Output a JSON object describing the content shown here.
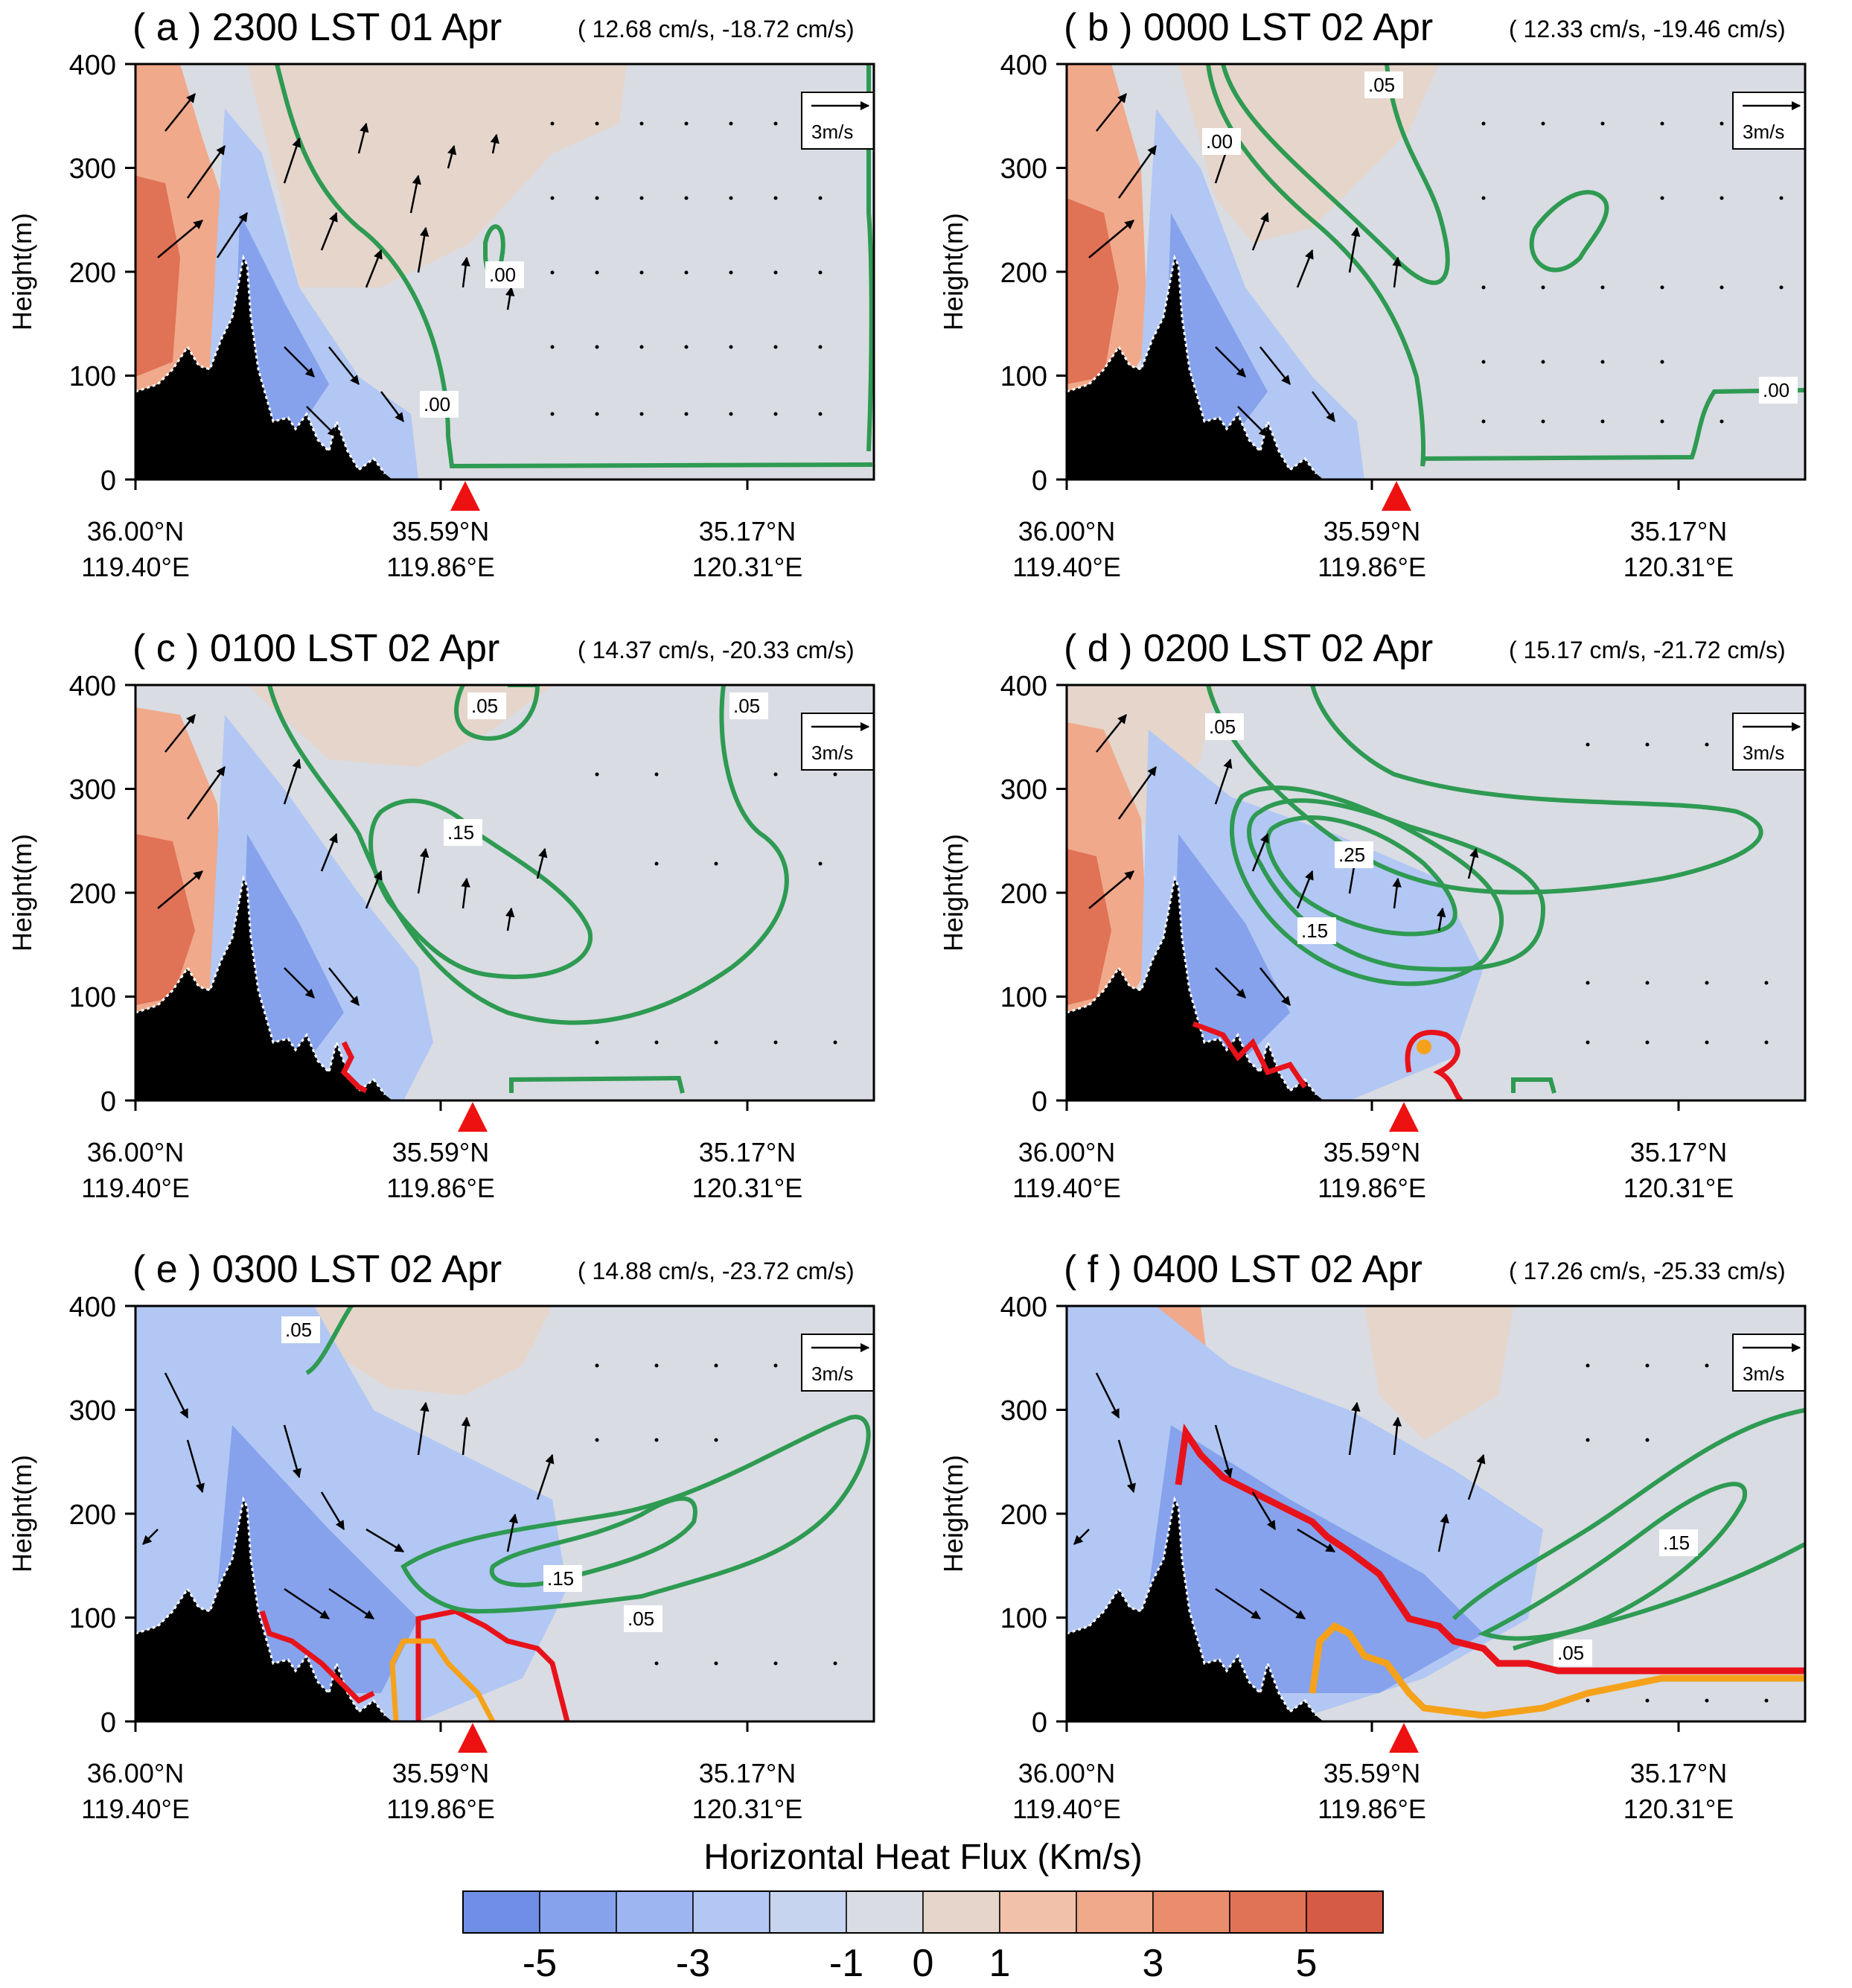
{
  "chart_data": {
    "type": "contour-vector-section",
    "colorbar": {
      "title": "Horizontal Heat Flux (Km/s)",
      "tick_labels": [
        "-5",
        "-3",
        "-1",
        "0",
        "1",
        "3",
        "5"
      ],
      "levels": [
        -6,
        -5,
        -4,
        -3,
        -2,
        -1,
        0,
        1,
        2,
        3,
        4,
        5,
        6
      ],
      "colors": [
        "#6f8ee6",
        "#86a2ec",
        "#9db5f0",
        "#b2c7f3",
        "#c6d4ef",
        "#d9dce3",
        "#e5d5cb",
        "#f2c1aa",
        "#f0a98b",
        "#ea8d6d",
        "#e07256",
        "#d65b44"
      ]
    },
    "ylabel": "Height(m)",
    "ylim": [
      0,
      400
    ],
    "yticks": [
      "0",
      "100",
      "200",
      "300",
      "400"
    ],
    "xticks": [
      {
        "lat": "36.00°N",
        "lon": "119.40°E"
      },
      {
        "lat": "35.59°N",
        "lon": "119.86°E"
      },
      {
        "lat": "35.17°N",
        "lon": "120.31°E"
      }
    ],
    "reference_vector": "3m/s",
    "panels": [
      {
        "id": "a",
        "title": "( a ) 2300 LST 01 Apr",
        "subtitle": "( 12.68 cm/s, -18.72 cm/s)",
        "contour_labels": [
          ".00",
          ".00"
        ],
        "contour_label_values": [
          0.0,
          0.0
        ]
      },
      {
        "id": "b",
        "title": "( b ) 0000 LST 02 Apr",
        "subtitle": "( 12.33 cm/s, -19.46 cm/s)",
        "contour_labels": [
          ".05",
          ".00",
          ".00"
        ],
        "contour_label_values": [
          0.05,
          0.0,
          0.0
        ]
      },
      {
        "id": "c",
        "title": "( c ) 0100 LST 02 Apr",
        "subtitle": "( 14.37 cm/s, -20.33 cm/s)",
        "contour_labels": [
          ".05",
          ".05",
          ".15"
        ],
        "contour_label_values": [
          0.05,
          0.05,
          0.15
        ]
      },
      {
        "id": "d",
        "title": "( d ) 0200 LST 02 Apr",
        "subtitle": "( 15.17 cm/s, -21.72 cm/s)",
        "contour_labels": [
          ".05",
          ".25",
          ".15"
        ],
        "contour_label_values": [
          0.05,
          0.25,
          0.15
        ]
      },
      {
        "id": "e",
        "title": "( e ) 0300 LST 02 Apr",
        "subtitle": "( 14.88 cm/s, -23.72 cm/s)",
        "contour_labels": [
          ".05",
          ".15",
          ".05"
        ],
        "contour_label_values": [
          0.05,
          0.15,
          0.05
        ]
      },
      {
        "id": "f",
        "title": "( f ) 0400 LST 02 Apr",
        "subtitle": "( 17.26 cm/s, -25.33 cm/s)",
        "contour_labels": [
          ".15",
          ".05"
        ],
        "contour_label_values": [
          0.15,
          0.05
        ]
      }
    ],
    "colors": {
      "contour": "#2e9a52",
      "red_line": "#e8121b",
      "orange_line": "#f5a21a",
      "terrain": "#000000",
      "site_marker": "#ee1111"
    }
  }
}
